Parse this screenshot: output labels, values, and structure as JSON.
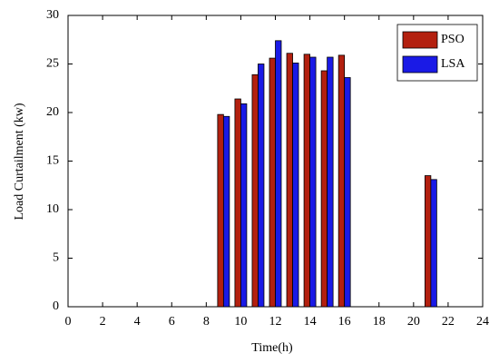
{
  "chart_data": {
    "type": "bar",
    "x": [
      9,
      10,
      11,
      12,
      13,
      14,
      15,
      16,
      21
    ],
    "series": [
      {
        "name": "PSO",
        "color": "#b3200f",
        "values": [
          19.8,
          21.4,
          23.9,
          25.6,
          26.1,
          26.0,
          24.3,
          25.9,
          13.5
        ]
      },
      {
        "name": "LSA",
        "color": "#1a1ae6",
        "values": [
          19.6,
          20.9,
          25.0,
          27.4,
          25.1,
          25.7,
          25.7,
          23.6,
          13.1
        ]
      }
    ],
    "xlabel": "Time(h)",
    "ylabel": "Load Curtailment (kw)",
    "xlim": [
      0,
      24
    ],
    "xticks": [
      0,
      2,
      4,
      6,
      8,
      10,
      12,
      14,
      16,
      18,
      20,
      22,
      24
    ],
    "ylim": [
      0,
      30
    ],
    "yticks": [
      0,
      5,
      10,
      15,
      20,
      25,
      30
    ],
    "legend": "upper right"
  }
}
